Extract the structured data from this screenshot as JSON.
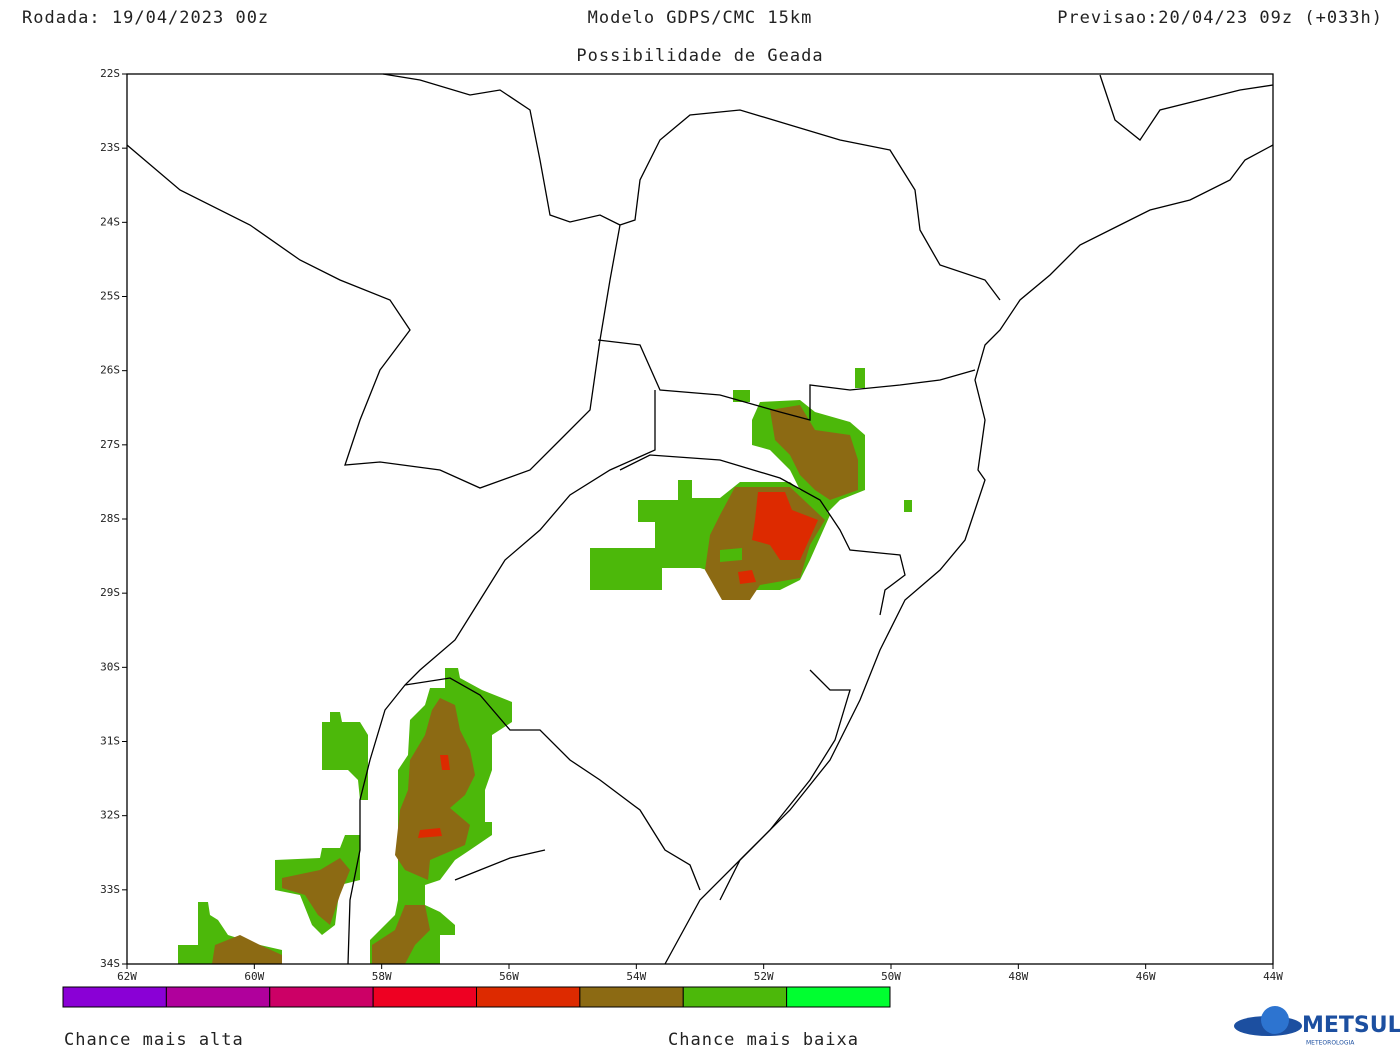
{
  "header": {
    "run": "Rodada: 19/04/2023 00z",
    "model": "Modelo GDPS/CMC 15km",
    "forecast": "Previsao:20/04/23 09z (+033h)",
    "title": "Possibilidade de Geada"
  },
  "map": {
    "lon_range": [
      -62,
      -44
    ],
    "lat_range": [
      -22,
      -34
    ],
    "lat_ticks": [
      {
        "value": -22,
        "label": "22S"
      },
      {
        "value": -23,
        "label": "23S"
      },
      {
        "value": -24,
        "label": "24S"
      },
      {
        "value": -25,
        "label": "25S"
      },
      {
        "value": -26,
        "label": "26S"
      },
      {
        "value": -27,
        "label": "27S"
      },
      {
        "value": -28,
        "label": "28S"
      },
      {
        "value": -29,
        "label": "29S"
      },
      {
        "value": -30,
        "label": "30S"
      },
      {
        "value": -31,
        "label": "31S"
      },
      {
        "value": -32,
        "label": "32S"
      },
      {
        "value": -33,
        "label": "33S"
      },
      {
        "value": -34,
        "label": "34S"
      }
    ],
    "lon_ticks": [
      {
        "value": -62,
        "label": "62W"
      },
      {
        "value": -60,
        "label": "60W"
      },
      {
        "value": -58,
        "label": "58W"
      },
      {
        "value": -56,
        "label": "56W"
      },
      {
        "value": -54,
        "label": "54W"
      },
      {
        "value": -52,
        "label": "52W"
      },
      {
        "value": -50,
        "label": "50W"
      },
      {
        "value": -48,
        "label": "48W"
      },
      {
        "value": -46,
        "label": "46W"
      },
      {
        "value": -44,
        "label": "44W"
      }
    ]
  },
  "legend": {
    "colors": [
      "#8a00d6",
      "#b0009c",
      "#cc0066",
      "#ee0022",
      "#dd2a00",
      "#8c6a13",
      "#4cb80a",
      "#00ff30"
    ],
    "high_label": "Chance mais alta",
    "low_label": "Chance mais baixa"
  },
  "logo": {
    "name": "METSUL",
    "tagline": "METEOROLOGIA"
  }
}
